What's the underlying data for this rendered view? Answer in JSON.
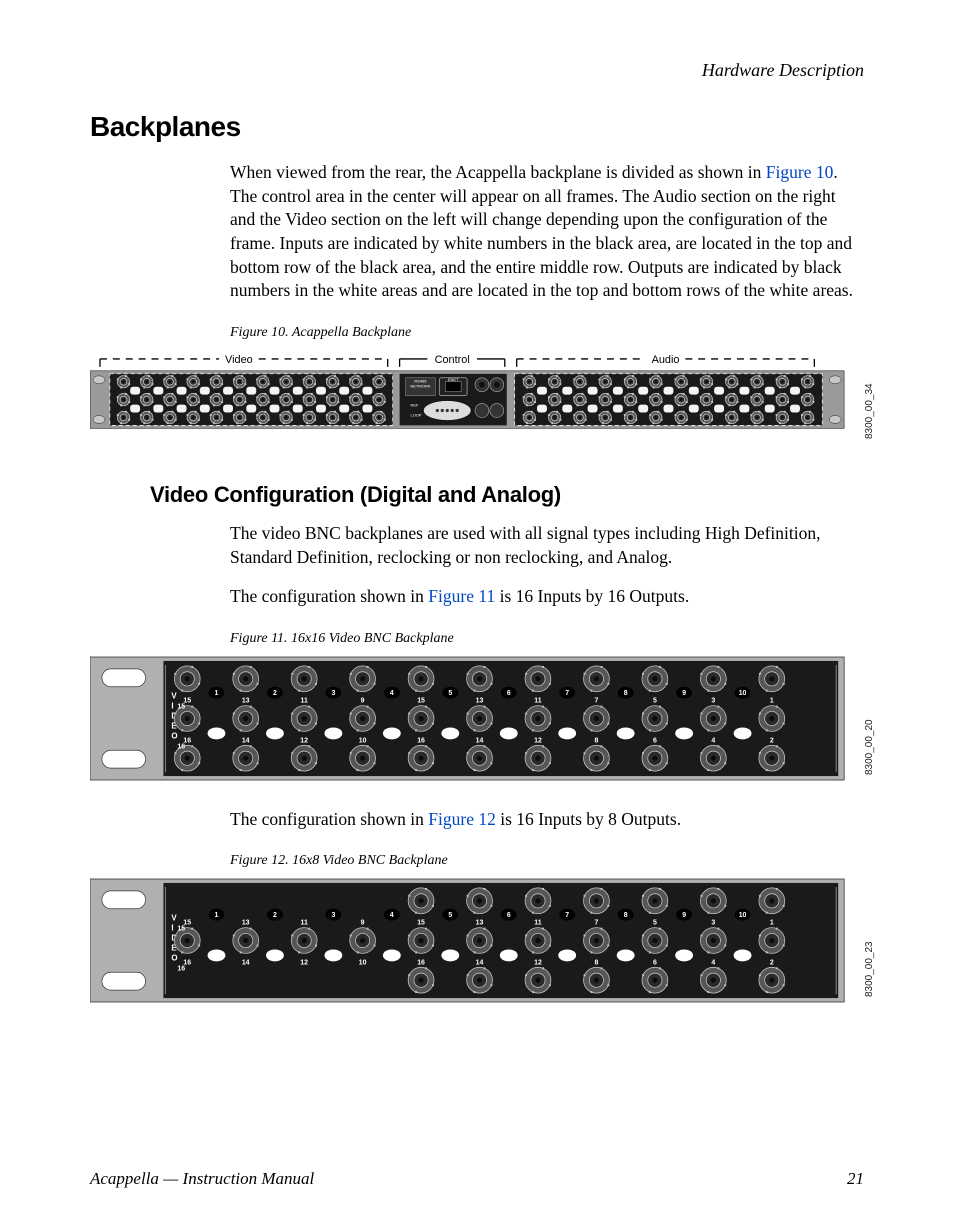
{
  "header": {
    "running": "Hardware Description"
  },
  "section": {
    "title": "Backplanes"
  },
  "para1": {
    "pre": "When viewed from the rear, the Acappella backplane is divided as shown in ",
    "ref": "Figure 10",
    "post": ". The control area in the center will appear on all frames. The Audio section on the right and the Video section on the left will change depending upon the configuration of the frame. Inputs are indicated by white numbers in the black area, are located in the top and bottom row of the black area, and the entire middle row. Outputs are indicated by black numbers in the white areas and are located in the top and bottom rows of the white areas."
  },
  "fig10": {
    "caption": "Figure 10.  Acappella Backplane",
    "label_video": "Video",
    "label_control": "Control",
    "label_audio": "Audio",
    "code": "8300_00_34",
    "bg": "#1a1a1a",
    "frame": "#9a9a9a",
    "white": "#f4f4f4",
    "top_out_labels": [
      "1",
      "2",
      "3",
      "4",
      "5",
      "6",
      "7",
      "8",
      "9",
      "10",
      "11",
      "12",
      "13",
      "14",
      "15",
      "16"
    ],
    "mid_in_labels": [
      "15",
      "13",
      "11",
      "9",
      "15",
      "13",
      "11",
      "7",
      "5",
      "3",
      "1"
    ],
    "bot_in_labels": [
      "16",
      "14",
      "12",
      "10",
      "16",
      "14",
      "12",
      "8",
      "6",
      "4",
      "2"
    ],
    "control": {
      "rs": "RS485",
      "net": "NETWORK",
      "enet": "ENET",
      "ref": "REF",
      "loop": "LOOP"
    }
  },
  "subheading": "Video Configuration (Digital and Analog)",
  "para2": "The video BNC backplanes are used with all signal types including High Definition, Standard Definition, reclocking or non reclocking, and Analog.",
  "para3": {
    "pre": "The configuration shown in ",
    "ref": "Figure 11",
    "post": " is 16 Inputs by 16 Outputs."
  },
  "fig11": {
    "caption": "Figure 11.  16x16 Video BNC Backplane",
    "code": "8300_00_20",
    "bg": "#1a1a1a",
    "frame": "#b0b0b0",
    "white": "#ffffff",
    "video_label": "V I D E O",
    "top_out": [
      "1",
      "2",
      "3",
      "4",
      "5",
      "6",
      "7",
      "8",
      "9",
      "10"
    ],
    "mid_in_left": [
      "15",
      "13",
      "11",
      "9"
    ],
    "mid_in_right": [
      "15",
      "13",
      "11",
      "7",
      "5",
      "3",
      "1"
    ],
    "bot_in_left": [
      "16",
      "14",
      "12",
      "10"
    ],
    "bot_in_right": [
      "16",
      "14",
      "12",
      "8",
      "6",
      "4",
      "2"
    ]
  },
  "para4": {
    "pre": "The configuration shown in ",
    "ref": "Figure 12",
    "post": " is 16 Inputs by 8 Outputs."
  },
  "fig12": {
    "caption": "Figure 12.  16x8 Video BNC Backplane",
    "code": "8300_00_23",
    "bg": "#1a1a1a",
    "frame": "#b0b0b0",
    "white": "#ffffff",
    "video_label": "V I D E O",
    "top_out": [
      "1",
      "2",
      "3",
      "4",
      "5",
      "6",
      "7",
      "8",
      "9",
      "10"
    ],
    "mid_in_left": [
      "15",
      "13",
      "11",
      "9"
    ],
    "mid_in_right": [
      "15",
      "13",
      "11",
      "7",
      "5",
      "3",
      "1"
    ],
    "bot_in_left": [
      "16",
      "14",
      "12",
      "10"
    ],
    "bot_in_right": [
      "16",
      "14",
      "12",
      "8",
      "6",
      "4",
      "2"
    ]
  },
  "footer": {
    "title": "Acappella — Instruction Manual",
    "page": "21"
  }
}
